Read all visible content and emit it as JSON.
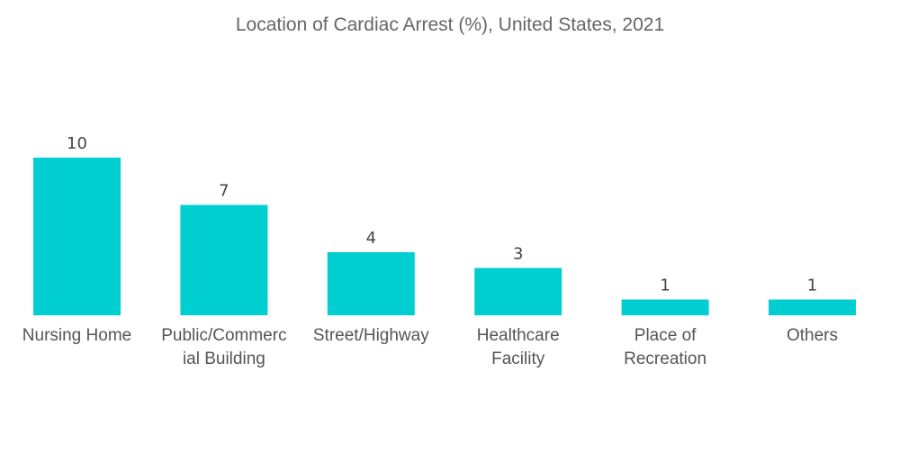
{
  "chart_data": {
    "type": "bar",
    "title": "Location of Cardiac Arrest (%), United States, 2021",
    "categories": [
      [
        "Nursing Home"
      ],
      [
        "Public/Commerc",
        "ial Building"
      ],
      [
        "Street/Highway"
      ],
      [
        "Healthcare",
        "Facility"
      ],
      [
        "Place of",
        "Recreation"
      ],
      [
        "Others"
      ]
    ],
    "values": [
      10,
      7,
      4,
      3,
      1,
      1
    ],
    "data_labels": [
      "10",
      "7",
      "4",
      "3",
      "1",
      "1"
    ],
    "xlabel": "",
    "ylabel": "",
    "ylim": [
      0,
      10
    ],
    "grid": false,
    "legend": "none",
    "bar_color": "#00CED1"
  }
}
